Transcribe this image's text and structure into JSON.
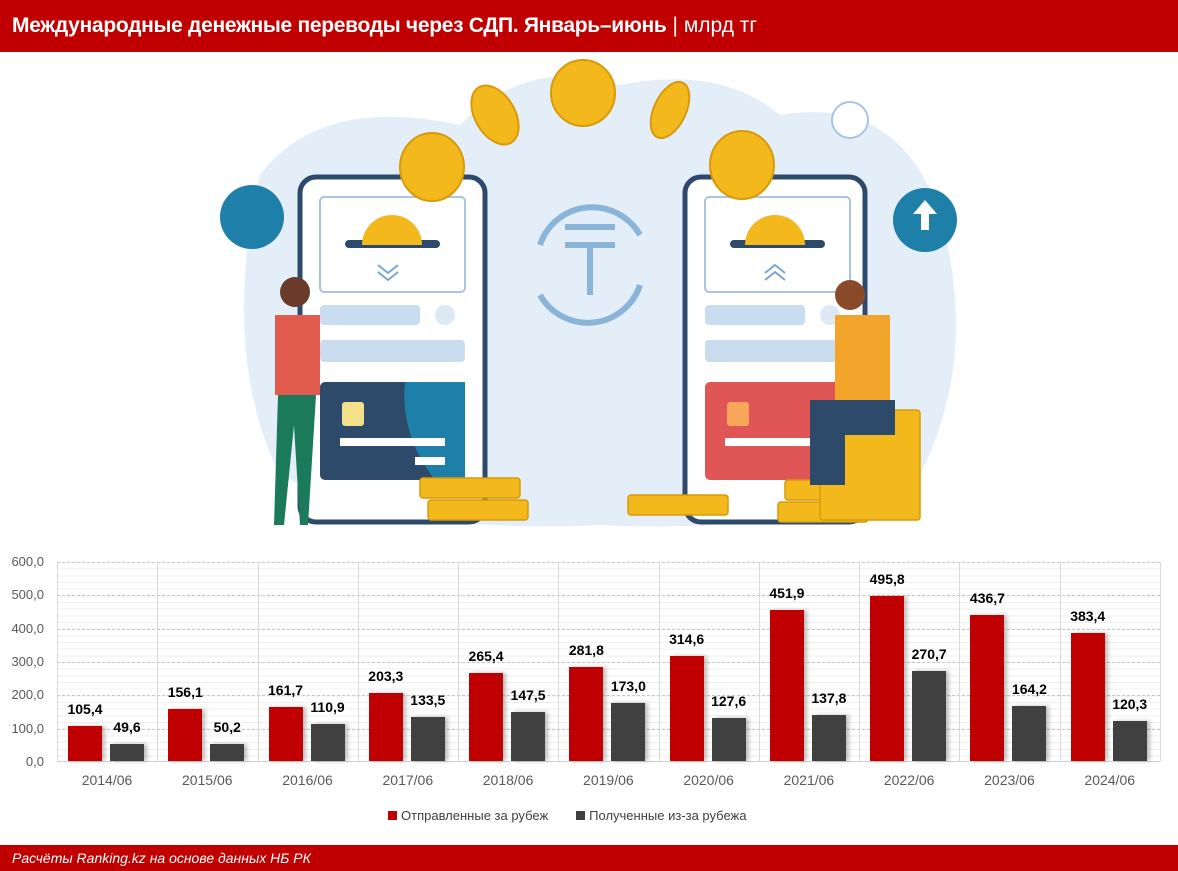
{
  "header": {
    "title": "Международные денежные переводы через СДП. Январь–июнь",
    "unit": "| млрд тг"
  },
  "footer": {
    "source": "Расчёты Ranking.kz на основе данных НБ РК"
  },
  "colors": {
    "brand_red": "#C00000",
    "sent": "#C00000",
    "received": "#404040"
  },
  "illustration": {
    "description": "two smartphones with coins, tenge exchange symbol, woman and man holding phones",
    "currency_symbol": "₸"
  },
  "chart_data": {
    "type": "bar",
    "title": "Международные денежные переводы через СДП. Январь–июнь | млрд тг",
    "xlabel": "",
    "ylabel": "",
    "ylim": [
      0,
      600
    ],
    "yticks": [
      "0,0",
      "100,0",
      "200,0",
      "300,0",
      "400,0",
      "500,0",
      "600,0"
    ],
    "grid": true,
    "legend_position": "bottom",
    "categories": [
      "2014/06",
      "2015/06",
      "2016/06",
      "2017/06",
      "2018/06",
      "2019/06",
      "2020/06",
      "2021/06",
      "2022/06",
      "2023/06",
      "2024/06"
    ],
    "series": [
      {
        "name": "Отправленные за рубеж",
        "color": "#C00000",
        "values": [
          105.4,
          156.1,
          161.7,
          203.3,
          265.4,
          281.8,
          314.6,
          451.9,
          495.8,
          436.7,
          383.4
        ],
        "labels": [
          "105,4",
          "156,1",
          "161,7",
          "203,3",
          "265,4",
          "281,8",
          "314,6",
          "451,9",
          "495,8",
          "436,7",
          "383,4"
        ]
      },
      {
        "name": "Полученные из-за рубежа",
        "color": "#404040",
        "values": [
          49.6,
          50.2,
          110.9,
          133.5,
          147.5,
          173.0,
          127.6,
          137.8,
          270.7,
          164.2,
          120.3
        ],
        "labels": [
          "49,6",
          "50,2",
          "110,9",
          "133,5",
          "147,5",
          "173,0",
          "127,6",
          "137,8",
          "270,7",
          "164,2",
          "120,3"
        ]
      }
    ]
  }
}
